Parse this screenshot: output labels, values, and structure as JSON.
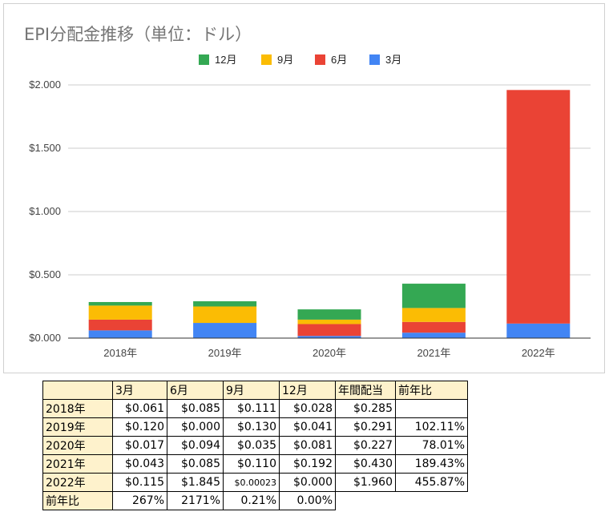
{
  "chart_data": {
    "type": "bar",
    "stacked": true,
    "title": "EPI分配金推移（単位：ドル）",
    "categories": [
      "2018年",
      "2019年",
      "2020年",
      "2021年",
      "2022年"
    ],
    "series": [
      {
        "name": "3月",
        "color": "#4285f4",
        "values": [
          0.061,
          0.12,
          0.017,
          0.043,
          0.115
        ]
      },
      {
        "name": "6月",
        "color": "#ea4335",
        "values": [
          0.085,
          0.0,
          0.094,
          0.085,
          1.845
        ]
      },
      {
        "name": "9月",
        "color": "#fbbc04",
        "values": [
          0.111,
          0.13,
          0.035,
          0.11,
          0.00023
        ]
      },
      {
        "name": "12月",
        "color": "#34a853",
        "values": [
          0.028,
          0.041,
          0.081,
          0.192,
          0.0
        ]
      }
    ],
    "legend_order": [
      "12月",
      "9月",
      "6月",
      "3月"
    ],
    "legend_position": "top",
    "ylim": [
      0,
      2.0
    ],
    "yticks": [
      "$0.000",
      "$0.500",
      "$1.000",
      "$1.500",
      "$2.000"
    ],
    "ytick_values": [
      0,
      0.5,
      1.0,
      1.5,
      2.0
    ],
    "grid": true
  },
  "table": {
    "header": [
      "",
      "3月",
      "6月",
      "9月",
      "12月",
      "年間配当",
      "前年比"
    ],
    "rows": [
      [
        "2018年",
        "$0.061",
        "$0.085",
        "$0.111",
        "$0.028",
        "$0.285",
        ""
      ],
      [
        "2019年",
        "$0.120",
        "$0.000",
        "$0.130",
        "$0.041",
        "$0.291",
        "102.11%"
      ],
      [
        "2020年",
        "$0.017",
        "$0.094",
        "$0.035",
        "$0.081",
        "$0.227",
        "78.01%"
      ],
      [
        "2021年",
        "$0.043",
        "$0.085",
        "$0.110",
        "$0.192",
        "$0.430",
        "189.43%"
      ],
      [
        "2022年",
        "$0.115",
        "$1.845",
        "$0.00023",
        "$0.000",
        "$1.960",
        "455.87%"
      ],
      [
        "前年比",
        "267%",
        "2171%",
        "0.21%",
        "0.00%"
      ]
    ]
  }
}
